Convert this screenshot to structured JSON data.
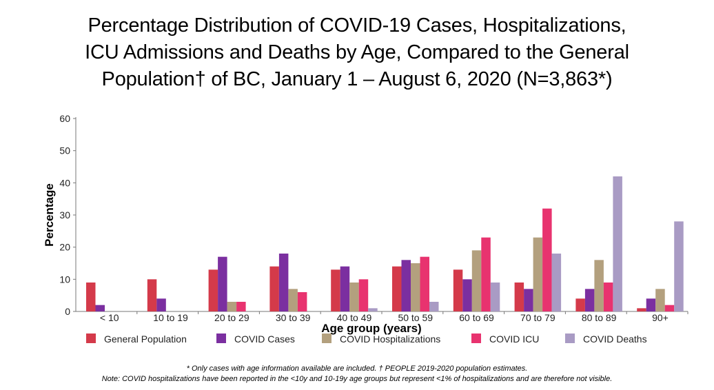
{
  "title_lines": [
    "Percentage Distribution of COVID-19 Cases, Hospitalizations,",
    "ICU Admissions and Deaths by Age, Compared to the General",
    "Population† of BC, January 1 – August 6, 2020 (N=3,863*)"
  ],
  "footnotes": {
    "line1": "* Only cases with age information available are included. † PEOPLE 2019-2020 population estimates.",
    "line2": "Note: COVID hospitalizations have been reported in the <10y and 10-19y age groups but represent <1% of hospitalizations and are therefore not visible."
  },
  "chart_data": {
    "type": "bar",
    "title": "",
    "xlabel": "Age group (years)",
    "ylabel": "Percentage",
    "ylim": [
      0,
      60
    ],
    "yticks": [
      0,
      10,
      20,
      30,
      40,
      50,
      60
    ],
    "grid": false,
    "legend_position": "bottom",
    "categories": [
      "< 10",
      "10 to 19",
      "20 to 29",
      "30 to 39",
      "40 to 49",
      "50 to 59",
      "60 to 69",
      "70 to 79",
      "80 to 89",
      "90+"
    ],
    "series": [
      {
        "name": "General Population",
        "color": "#d43a4a",
        "values": [
          9,
          10,
          13,
          14,
          13,
          14,
          13,
          9,
          4,
          1
        ]
      },
      {
        "name": "COVID Cases",
        "color": "#7b2fa0",
        "values": [
          2,
          4,
          17,
          18,
          14,
          16,
          10,
          7,
          7,
          4
        ]
      },
      {
        "name": "COVID Hospitalizations",
        "color": "#b3a07e",
        "values": [
          0,
          0,
          3,
          7,
          9,
          15,
          19,
          23,
          16,
          7
        ]
      },
      {
        "name": "COVID ICU",
        "color": "#e8336f",
        "values": [
          0,
          0,
          3,
          6,
          10,
          17,
          23,
          32,
          9,
          2
        ]
      },
      {
        "name": "COVID Deaths",
        "color": "#a99bc4",
        "values": [
          0,
          0,
          0,
          0,
          1,
          3,
          9,
          18,
          42,
          28
        ]
      }
    ]
  }
}
